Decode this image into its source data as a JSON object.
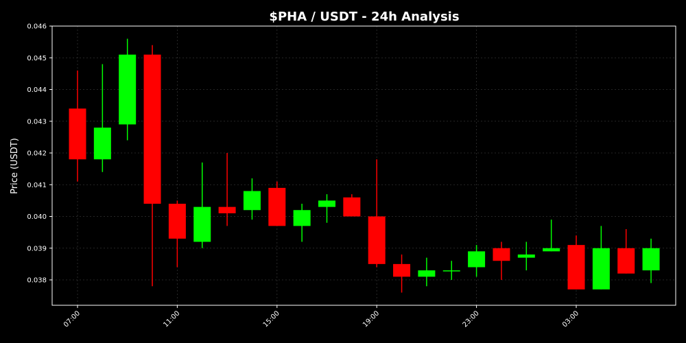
{
  "chart_data": {
    "type": "candlestick",
    "title": "$PHA / USDT - 24h Analysis",
    "xlabel": "",
    "ylabel": "Price (USDT)",
    "ylim": [
      0.0372,
      0.046
    ],
    "yticks": [
      "0.038",
      "0.039",
      "0.040",
      "0.041",
      "0.042",
      "0.043",
      "0.044",
      "0.045",
      "0.046"
    ],
    "xticks": [
      {
        "index": 0,
        "label": "07:00"
      },
      {
        "index": 4,
        "label": "11:00"
      },
      {
        "index": 8,
        "label": "15:00"
      },
      {
        "index": 12,
        "label": "19:00"
      },
      {
        "index": 16,
        "label": "23:00"
      },
      {
        "index": 20,
        "label": "03:00"
      }
    ],
    "grid": true,
    "colors": {
      "up": "#00ff00",
      "down": "#ff0000",
      "background": "#000000",
      "axes": "#ffffff",
      "grid": "#333333"
    },
    "candles": [
      {
        "open": 0.0434,
        "high": 0.0446,
        "low": 0.0411,
        "close": 0.0418
      },
      {
        "open": 0.0418,
        "high": 0.0448,
        "low": 0.0414,
        "close": 0.0428
      },
      {
        "open": 0.0429,
        "high": 0.0456,
        "low": 0.0424,
        "close": 0.0451
      },
      {
        "open": 0.0451,
        "high": 0.0454,
        "low": 0.0378,
        "close": 0.0404
      },
      {
        "open": 0.0404,
        "high": 0.0405,
        "low": 0.0384,
        "close": 0.0393
      },
      {
        "open": 0.0392,
        "high": 0.0417,
        "low": 0.039,
        "close": 0.0403
      },
      {
        "open": 0.0403,
        "high": 0.042,
        "low": 0.0397,
        "close": 0.0401
      },
      {
        "open": 0.0402,
        "high": 0.0412,
        "low": 0.0399,
        "close": 0.0408
      },
      {
        "open": 0.0409,
        "high": 0.0411,
        "low": 0.0397,
        "close": 0.0397
      },
      {
        "open": 0.0397,
        "high": 0.0404,
        "low": 0.0392,
        "close": 0.0402
      },
      {
        "open": 0.0403,
        "high": 0.0407,
        "low": 0.0398,
        "close": 0.0405
      },
      {
        "open": 0.0406,
        "high": 0.0407,
        "low": 0.04,
        "close": 0.04
      },
      {
        "open": 0.04,
        "high": 0.0418,
        "low": 0.0384,
        "close": 0.0385
      },
      {
        "open": 0.0385,
        "high": 0.0388,
        "low": 0.0376,
        "close": 0.0381
      },
      {
        "open": 0.0381,
        "high": 0.0387,
        "low": 0.0378,
        "close": 0.0383
      },
      {
        "open": 0.0383,
        "high": 0.0386,
        "low": 0.038,
        "close": 0.0383
      },
      {
        "open": 0.0384,
        "high": 0.0391,
        "low": 0.0381,
        "close": 0.0389
      },
      {
        "open": 0.039,
        "high": 0.0392,
        "low": 0.038,
        "close": 0.0386
      },
      {
        "open": 0.0387,
        "high": 0.0392,
        "low": 0.0383,
        "close": 0.0388
      },
      {
        "open": 0.0389,
        "high": 0.0399,
        "low": 0.0389,
        "close": 0.039
      },
      {
        "open": 0.0391,
        "high": 0.0394,
        "low": 0.0377,
        "close": 0.0377
      },
      {
        "open": 0.0377,
        "high": 0.0397,
        "low": 0.0377,
        "close": 0.039
      },
      {
        "open": 0.039,
        "high": 0.0396,
        "low": 0.0382,
        "close": 0.0382
      },
      {
        "open": 0.0383,
        "high": 0.0393,
        "low": 0.0379,
        "close": 0.039
      }
    ]
  }
}
